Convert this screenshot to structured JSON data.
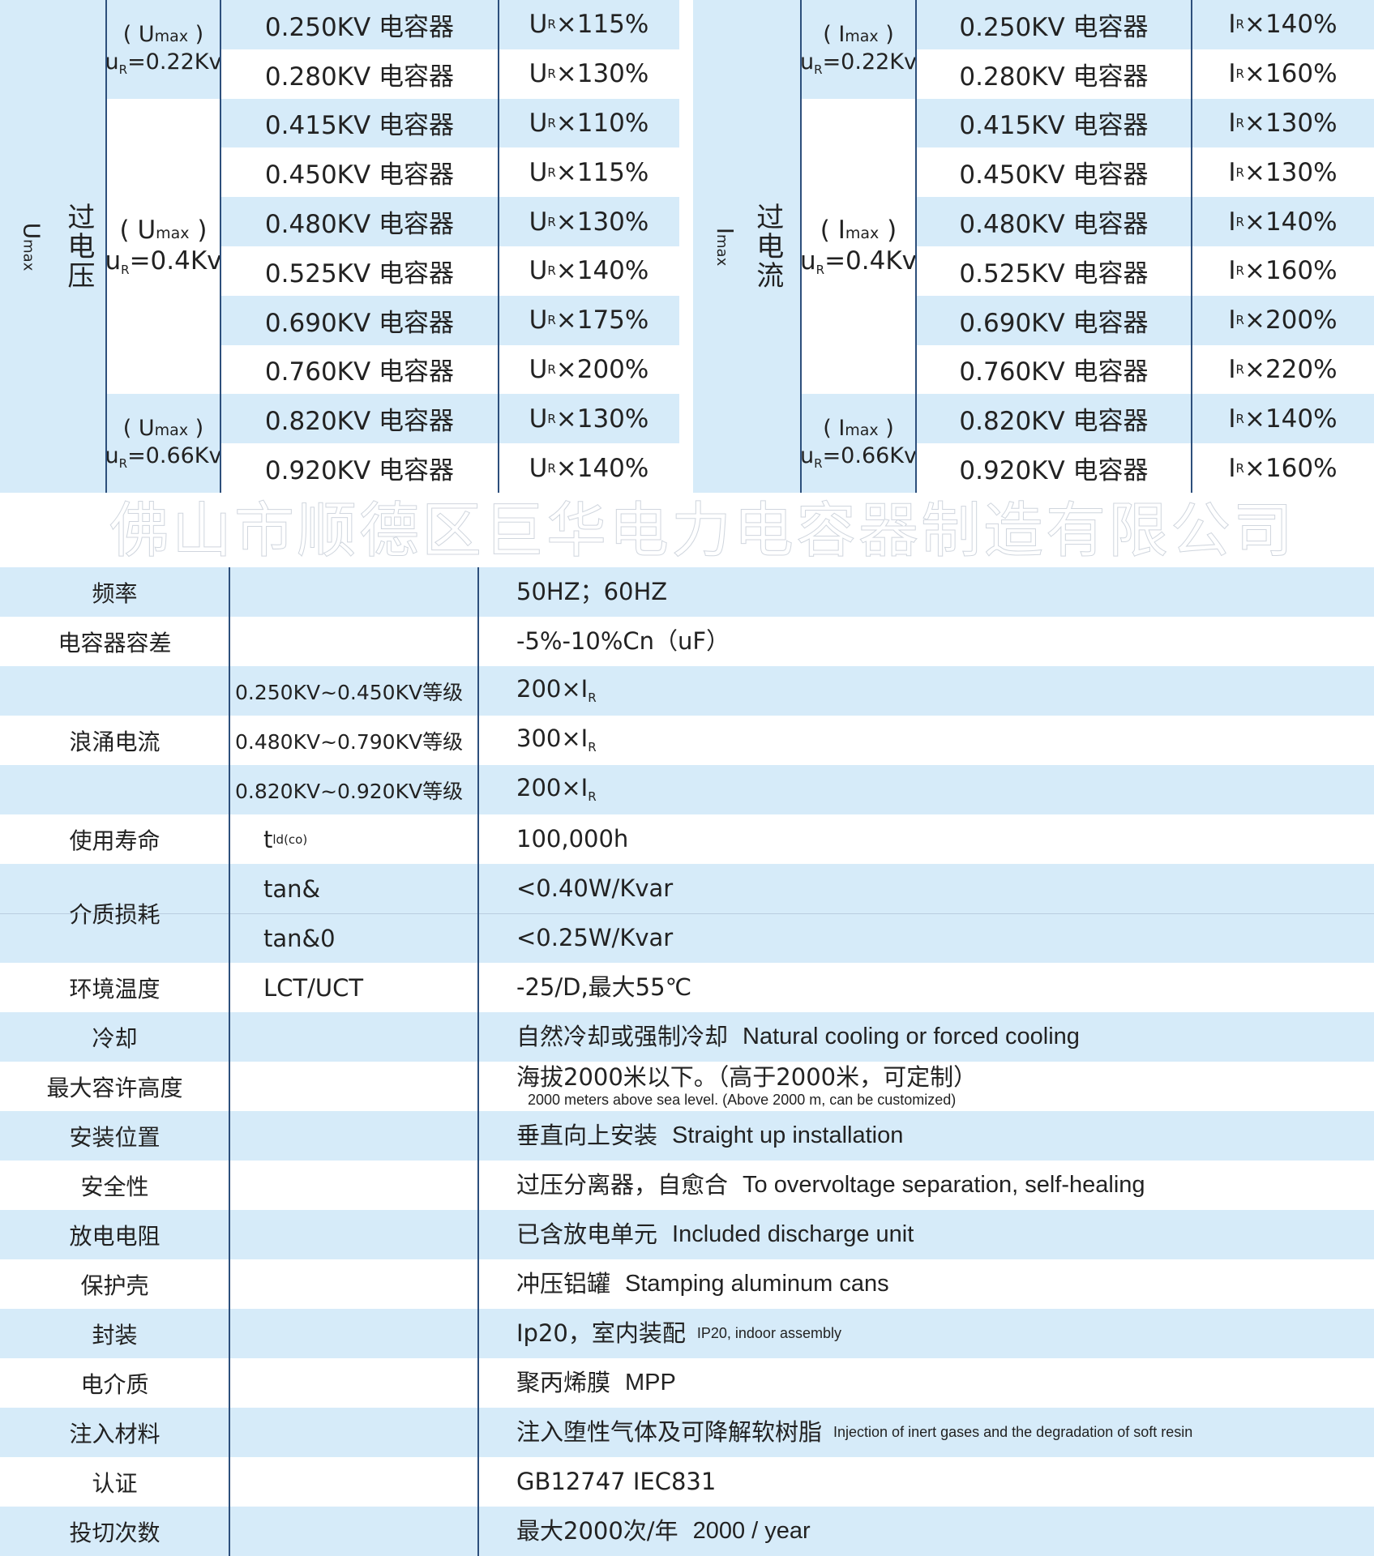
{
  "overvoltage_table": {
    "label_cn": "过电压",
    "label_sym": "U",
    "label_sub": "max",
    "groups": [
      {
        "sym": "U",
        "sub": "max",
        "line2_sym": "u",
        "line2_sub": "R",
        "line2_rest": "=0.22Kv",
        "rows": 2
      },
      {
        "sym": "U",
        "sub": "max",
        "line2_sym": "u",
        "line2_sub": "R",
        "line2_rest": "=0.4Kv",
        "rows": 6
      },
      {
        "sym": "U",
        "sub": "max",
        "line2_sym": "u",
        "line2_sub": "R",
        "line2_rest": "=0.66Kv",
        "rows": 2
      }
    ],
    "rows": [
      {
        "capacitor": "0.250KV 电容器",
        "sym": "U",
        "sub": "R",
        "factor": "×115%"
      },
      {
        "capacitor": "0.280KV 电容器",
        "sym": "U",
        "sub": "R",
        "factor": "×130%"
      },
      {
        "capacitor": "0.415KV 电容器",
        "sym": "U",
        "sub": "R",
        "factor": "×110%"
      },
      {
        "capacitor": "0.450KV 电容器",
        "sym": "U",
        "sub": "R",
        "factor": "×115%"
      },
      {
        "capacitor": "0.480KV 电容器",
        "sym": "U",
        "sub": "R",
        "factor": "×130%"
      },
      {
        "capacitor": "0.525KV 电容器",
        "sym": "U",
        "sub": "R",
        "factor": "×140%"
      },
      {
        "capacitor": "0.690KV 电容器",
        "sym": "U",
        "sub": "R",
        "factor": "×175%"
      },
      {
        "capacitor": "0.760KV 电容器",
        "sym": "U",
        "sub": "R",
        "factor": "×200%"
      },
      {
        "capacitor": "0.820KV 电容器",
        "sym": "U",
        "sub": "R",
        "factor": "×130%"
      },
      {
        "capacitor": "0.920KV 电容器",
        "sym": "U",
        "sub": "R",
        "factor": "×140%"
      }
    ]
  },
  "overcurrent_table": {
    "label_cn": "过电流",
    "label_sym": "I",
    "label_sub": "max",
    "groups": [
      {
        "sym": "I",
        "sub": "max",
        "line2_sym": "u",
        "line2_sub": "R",
        "line2_rest": "=0.22Kv",
        "rows": 2
      },
      {
        "sym": "I",
        "sub": "max",
        "line2_sym": "u",
        "line2_sub": "R",
        "line2_rest": "=0.4Kv",
        "rows": 6
      },
      {
        "sym": "I",
        "sub": "max",
        "line2_sym": "u",
        "line2_sub": "R",
        "line2_rest": "=0.66Kv",
        "rows": 2
      }
    ],
    "rows": [
      {
        "capacitor": "0.250KV 电容器",
        "sym": "I",
        "sub": "R",
        "factor": "×140%"
      },
      {
        "capacitor": "0.280KV 电容器",
        "sym": "I",
        "sub": "R",
        "factor": "×160%"
      },
      {
        "capacitor": "0.415KV 电容器",
        "sym": "I",
        "sub": "R",
        "factor": "×130%"
      },
      {
        "capacitor": "0.450KV 电容器",
        "sym": "I",
        "sub": "R",
        "factor": "×130%"
      },
      {
        "capacitor": "0.480KV 电容器",
        "sym": "I",
        "sub": "R",
        "factor": "×140%"
      },
      {
        "capacitor": "0.525KV 电容器",
        "sym": "I",
        "sub": "R",
        "factor": "×160%"
      },
      {
        "capacitor": "0.690KV 电容器",
        "sym": "I",
        "sub": "R",
        "factor": "×200%"
      },
      {
        "capacitor": "0.760KV 电容器",
        "sym": "I",
        "sub": "R",
        "factor": "×220%"
      },
      {
        "capacitor": "0.820KV 电容器",
        "sym": "I",
        "sub": "R",
        "factor": "×140%"
      },
      {
        "capacitor": "0.920KV 电容器",
        "sym": "I",
        "sub": "R",
        "factor": "×160%"
      }
    ]
  },
  "spec_table": {
    "items": [
      {
        "label": "频率",
        "rows": [
          {
            "cond": "",
            "value": "50HZ；60HZ"
          }
        ]
      },
      {
        "label": "电容器容差",
        "rows": [
          {
            "cond": "",
            "value": "-5%-10%Cn（uF）"
          }
        ]
      },
      {
        "label": "浪涌电流",
        "rows": [
          {
            "cond": "0.250KV~0.450KV等级",
            "value": "200×I",
            "value_sub": "R"
          },
          {
            "cond": "0.480KV~0.790KV等级",
            "value": "300×I",
            "value_sub": "R"
          },
          {
            "cond": "0.820KV~0.920KV等级",
            "value": "200×I",
            "value_sub": "R"
          }
        ]
      },
      {
        "label": "使用寿命",
        "rows": [
          {
            "cond": "t",
            "cond_sub": "ld(co)",
            "value": "100,000h"
          }
        ]
      },
      {
        "label": "介质损耗",
        "rows": [
          {
            "cond": "tan&",
            "value": "<0.40W/Kvar"
          },
          {
            "cond": "tan&0",
            "value": "<0.25W/Kvar"
          }
        ]
      },
      {
        "label": "环境温度",
        "rows": [
          {
            "cond": "LCT/UCT",
            "value": "-25/D,最大55℃"
          }
        ]
      },
      {
        "label": "冷却",
        "rows": [
          {
            "cond": "",
            "value": "自然冷却或强制冷却",
            "value_en": "Natural cooling or forced cooling"
          }
        ]
      },
      {
        "label": "最大容许高度",
        "rows": [
          {
            "cond": "",
            "value": "海拔2000米以下。（高于2000米，可定制）",
            "value_small": "2000 meters above sea level. (Above 2000 m, can be customized)"
          }
        ]
      },
      {
        "label": "安装位置",
        "rows": [
          {
            "cond": "",
            "value": "垂直向上安装",
            "value_en": "Straight up installation"
          }
        ]
      },
      {
        "label": "安全性",
        "rows": [
          {
            "cond": "",
            "value": "过压分离器，自愈合",
            "value_en": "To overvoltage separation, self-healing"
          }
        ]
      },
      {
        "label": "放电电阻",
        "rows": [
          {
            "cond": "",
            "value": "已含放电单元",
            "value_en": "Included discharge unit"
          }
        ]
      },
      {
        "label": "保护壳",
        "rows": [
          {
            "cond": "",
            "value": "冲压铝罐",
            "value_en": "Stamping aluminum cans"
          }
        ]
      },
      {
        "label": "封装",
        "rows": [
          {
            "cond": "",
            "value": "Ip20，室内装配",
            "value_small": "IP20, indoor assembly"
          }
        ]
      },
      {
        "label": "电介质",
        "rows": [
          {
            "cond": "",
            "value": "聚丙烯膜",
            "value_en": "MPP"
          }
        ]
      },
      {
        "label": "注入材料",
        "rows": [
          {
            "cond": "",
            "value": "注入堕性气体及可降解软树脂",
            "value_small": "Injection of inert gases and the degradation of soft resin"
          }
        ]
      },
      {
        "label": "认证",
        "rows": [
          {
            "cond": "",
            "value": "GB12747  IEC831"
          }
        ]
      },
      {
        "label": "投切次数",
        "rows": [
          {
            "cond": "",
            "value": "最大2000次/年",
            "value_en": "2000 / year"
          }
        ]
      }
    ],
    "stripe_pattern": [
      1,
      0,
      1,
      0,
      1,
      0,
      1,
      1,
      0,
      1,
      0,
      1,
      0,
      1,
      0,
      1,
      0,
      1,
      0,
      1
    ]
  },
  "watermark": "佛山市顺德区巨华电力电容器制造有限公司",
  "colors": {
    "stripe": "#d6ebf9",
    "line": "#2d4f7c",
    "text": "#222222"
  }
}
